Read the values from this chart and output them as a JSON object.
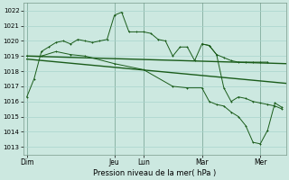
{
  "background_color": "#cce8e0",
  "grid_color": "#a8d4cc",
  "line_color": "#1a5c1a",
  "ylim": [
    1012.5,
    1022.5
  ],
  "yticks": [
    1013,
    1014,
    1015,
    1016,
    1017,
    1018,
    1019,
    1020,
    1021,
    1022
  ],
  "xlabel": "Pression niveau de la mer( hPa )",
  "day_labels": [
    "Dim",
    "Jeu",
    "Lun",
    "Mar",
    "Mer"
  ],
  "day_positions": [
    0.5,
    12.5,
    16.5,
    24.5,
    32.5
  ],
  "xlim": [
    0,
    36
  ],
  "curve1_x": [
    0.5,
    1.5,
    2.5,
    3.5,
    4.5,
    5.5,
    6.5,
    7.5,
    8.5,
    9.5,
    10.5,
    11.5,
    12.5,
    13.5,
    14.5,
    15.5,
    16.5,
    17.5,
    18.5,
    19.5,
    20.5,
    21.5,
    22.5,
    23.5,
    24.5,
    25.5,
    26.5,
    27.5,
    28.5,
    29.5,
    30.5,
    31.5,
    32.5,
    33.5
  ],
  "curve1_y": [
    1016.3,
    1017.5,
    1019.3,
    1019.6,
    1019.9,
    1020.0,
    1019.8,
    1020.1,
    1020.0,
    1019.9,
    1020.0,
    1020.1,
    1021.7,
    1021.9,
    1020.6,
    1020.6,
    1020.6,
    1020.5,
    1020.1,
    1020.0,
    1019.0,
    1019.6,
    1019.6,
    1018.7,
    1019.8,
    1019.7,
    1019.1,
    1018.9,
    1018.7,
    1018.6,
    1018.6,
    1018.6,
    1018.6,
    1018.6
  ],
  "curve2_x": [
    0.5,
    36
  ],
  "curve2_y": [
    1019.0,
    1018.5
  ],
  "curve3_x": [
    0.5,
    36
  ],
  "curve3_y": [
    1018.8,
    1017.2
  ],
  "curve4_x": [
    0.5,
    2.5,
    4.5,
    6.5,
    8.5,
    12.5,
    16.5,
    20.5,
    22.5,
    24.5,
    25.5,
    26.5,
    27.5,
    28.5,
    29.5,
    30.5,
    31.5,
    32.5,
    33.5,
    34.5,
    35.5
  ],
  "curve4_y": [
    1019.0,
    1019.0,
    1019.3,
    1019.1,
    1019.0,
    1018.5,
    1018.1,
    1017.0,
    1016.9,
    1016.9,
    1016.0,
    1015.8,
    1015.7,
    1015.3,
    1015.0,
    1014.4,
    1013.3,
    1013.2,
    1014.1,
    1015.9,
    1015.6
  ],
  "curve5_x": [
    24.5,
    25.5,
    26.5,
    27.5,
    28.5,
    29.5,
    30.5,
    31.5,
    32.5,
    33.5,
    34.5,
    35.5
  ],
  "curve5_y": [
    1019.8,
    1019.7,
    1019.1,
    1016.9,
    1016.0,
    1016.3,
    1016.2,
    1016.0,
    1015.9,
    1015.8,
    1015.7,
    1015.5
  ]
}
